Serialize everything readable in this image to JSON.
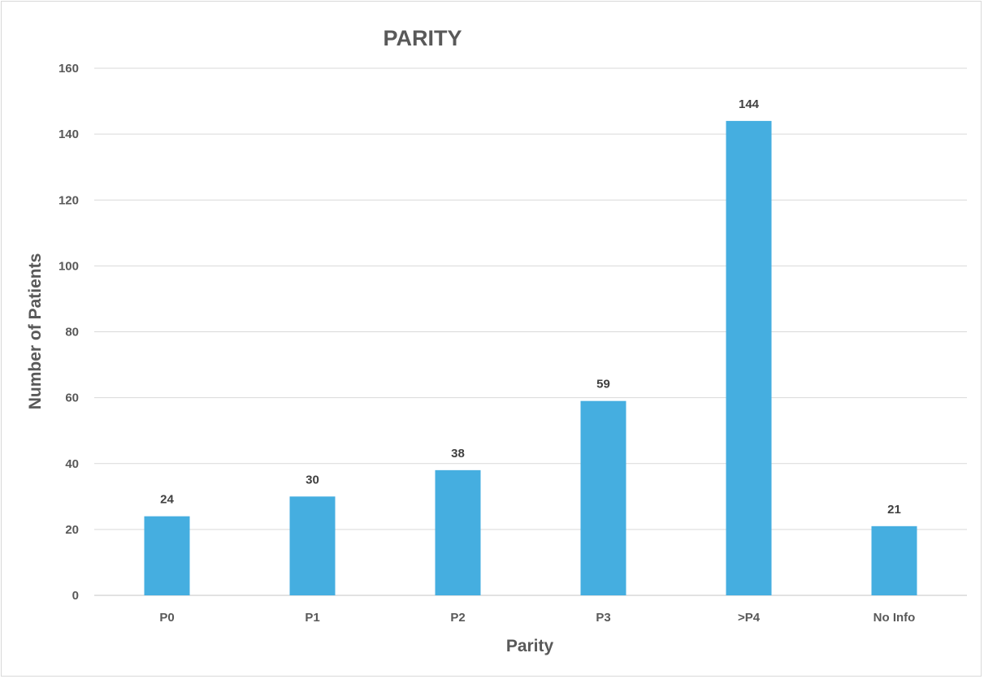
{
  "chart_data": {
    "type": "bar",
    "title": "PARITY",
    "xlabel": "Parity",
    "ylabel": "Number of Patients",
    "categories": [
      "P0",
      "P1",
      "P2",
      "P3",
      ">P4",
      "No Info"
    ],
    "values": [
      24,
      30,
      38,
      59,
      144,
      21
    ],
    "data_labels": [
      "24",
      "30",
      "38",
      "59",
      "144",
      "21"
    ],
    "ylim": [
      0,
      160
    ],
    "yticks": [
      0,
      20,
      40,
      60,
      80,
      100,
      120,
      140,
      160
    ],
    "ytick_labels": [
      "0",
      "20",
      "40",
      "60",
      "80",
      "100",
      "120",
      "140",
      "160"
    ],
    "grid": true,
    "legend": "none",
    "bar_color": "#45aee0",
    "grid_color": "#d9d9d9"
  }
}
